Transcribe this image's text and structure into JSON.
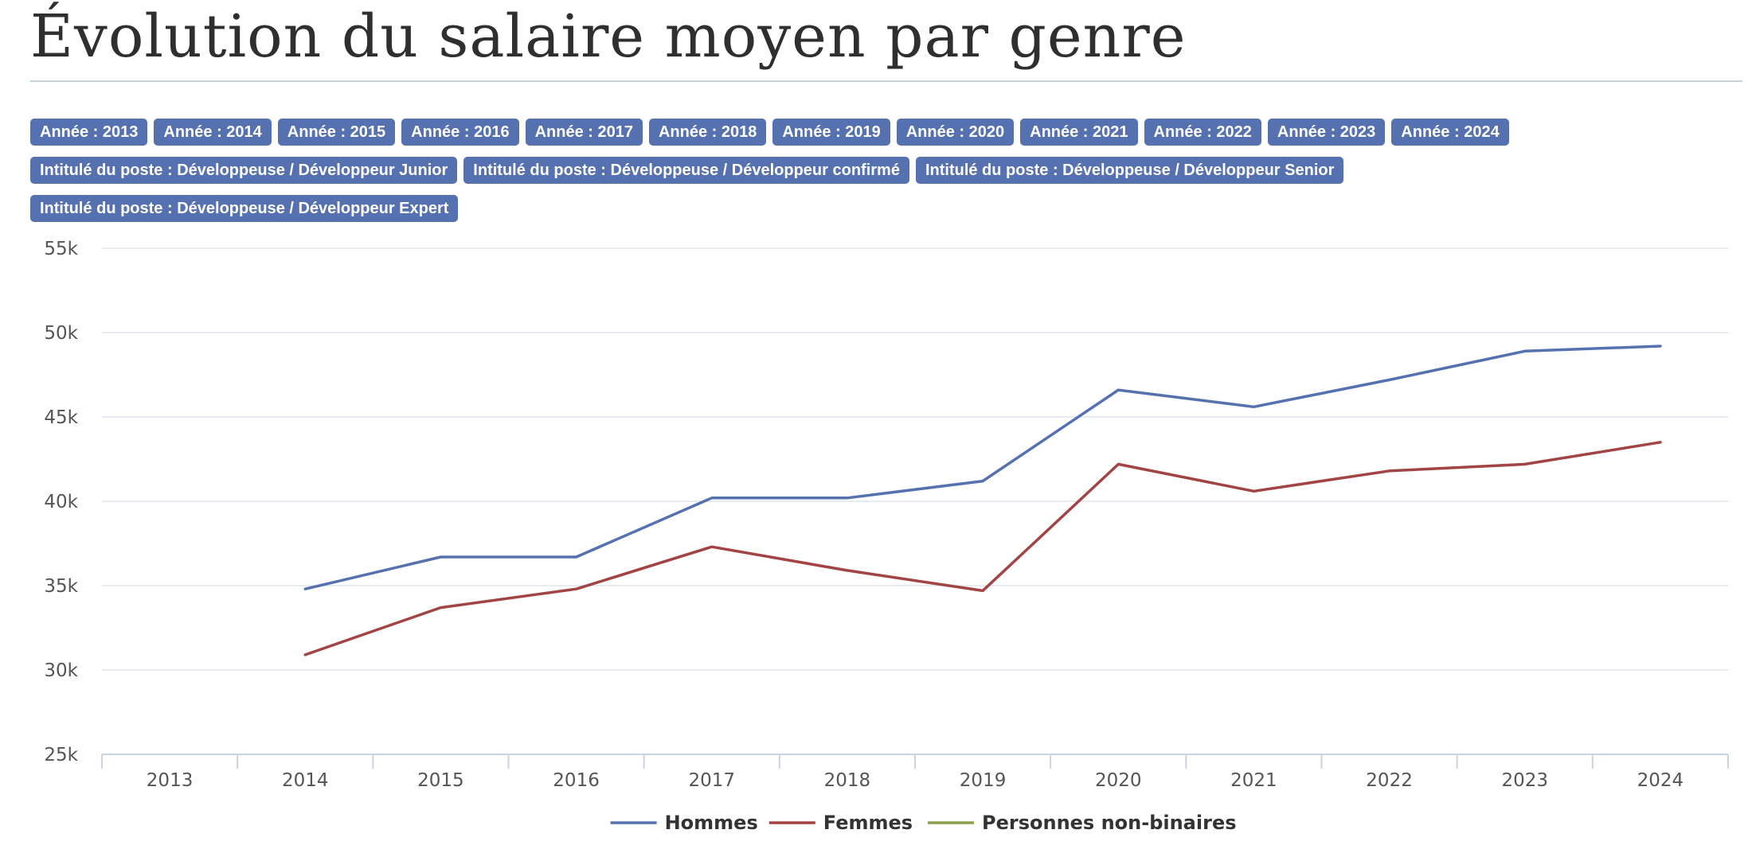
{
  "page": {
    "title": "Évolution du salaire moyen par genre"
  },
  "filters": {
    "years": [
      "Année : 2013",
      "Année : 2014",
      "Année : 2015",
      "Année : 2016",
      "Année : 2017",
      "Année : 2018",
      "Année : 2019",
      "Année : 2020",
      "Année : 2021",
      "Année : 2022",
      "Année : 2023",
      "Année : 2024"
    ],
    "jobs_row1": [
      "Intitulé du poste : Développeuse / Développeur Junior",
      "Intitulé du poste : Développeuse / Développeur confirmé",
      "Intitulé du poste : Développeuse / Développeur Senior"
    ],
    "jobs_row2": [
      "Intitulé du poste : Développeuse / Développeur Expert"
    ]
  },
  "colors": {
    "chip_background": "#5571b0",
    "hommes": "#5571b0",
    "femmes": "#a34444",
    "non_binaires": "#8aa04a",
    "grid": "#dde3ee"
  },
  "chart_data": {
    "type": "line",
    "title": "",
    "xlabel": "",
    "ylabel": "",
    "categories": [
      "2013",
      "2014",
      "2015",
      "2016",
      "2017",
      "2018",
      "2019",
      "2020",
      "2021",
      "2022",
      "2023",
      "2024"
    ],
    "ylim": [
      25000,
      55000
    ],
    "y_ticks": [
      25000,
      30000,
      35000,
      40000,
      45000,
      50000,
      55000
    ],
    "y_tick_labels": [
      "25k",
      "30k",
      "35k",
      "40k",
      "45k",
      "50k",
      "55k"
    ],
    "grid": true,
    "legend_position": "bottom-center",
    "series": [
      {
        "name": "Hommes",
        "color_key": "hommes",
        "values": [
          null,
          34800,
          36700,
          36700,
          40200,
          40200,
          41200,
          46600,
          45600,
          47200,
          48900,
          49200
        ]
      },
      {
        "name": "Femmes",
        "color_key": "femmes",
        "values": [
          null,
          30900,
          33700,
          34800,
          37300,
          35900,
          34700,
          42200,
          40600,
          41800,
          42200,
          43500
        ]
      },
      {
        "name": "Personnes non-binaires",
        "color_key": "non_binaires",
        "values": [
          null,
          null,
          null,
          null,
          null,
          null,
          null,
          null,
          null,
          null,
          null,
          null
        ]
      }
    ]
  }
}
